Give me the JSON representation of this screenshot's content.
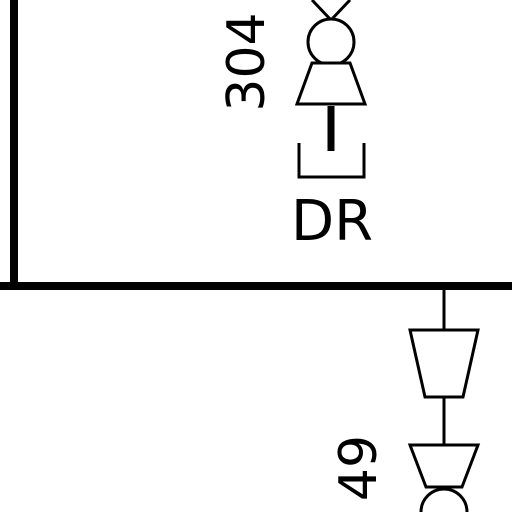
{
  "labels": {
    "upper_tag": "304",
    "upper_device": "DR",
    "lower_tag": "49"
  },
  "colors": {
    "line": "#000000",
    "background": "#ffffff"
  }
}
